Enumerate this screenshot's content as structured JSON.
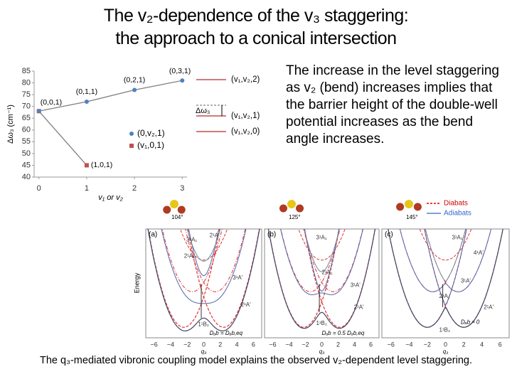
{
  "title": {
    "line1": "The v₂-dependence of the v₃ staggering:",
    "line2": "the approach to a conical intersection"
  },
  "body_text": "The increase in the level staggering as v₂ (bend) increases implies that the barrier height of the double-well potential increases as the bend angle increases.",
  "caption": "The q₃-mediated vibronic coupling model explains the observed v₂-dependent level staggering.",
  "chart_data": {
    "type": "line",
    "ylabel": "Δω₃ (cm⁻¹)",
    "xlabel": "v₁ or v₂",
    "x": [
      0,
      1,
      2,
      3
    ],
    "xlim": [
      -0.1,
      3.1
    ],
    "xticks": [
      0,
      1,
      2,
      3
    ],
    "ylim": [
      40,
      85
    ],
    "yticks": [
      40,
      45,
      50,
      55,
      60,
      65,
      70,
      75,
      80,
      85
    ],
    "line_color": "#7f7f7f",
    "legend": "center-right",
    "series": [
      {
        "name": "(v₁,0,1)",
        "color": "#c0504d",
        "marker": "square",
        "values": [
          68,
          45,
          null,
          null
        ],
        "point_labels": [
          null,
          "(1,0,1)",
          null,
          null
        ]
      },
      {
        "name": "(0,v₂,1)",
        "color": "#4f81bd",
        "marker": "circle",
        "values": [
          68,
          72,
          77,
          81
        ],
        "point_labels": [
          "(0,0,1)",
          "(0,1,1)",
          "(0,2,1)",
          "(0,3,1)"
        ]
      }
    ]
  },
  "level_diagram": {
    "levels": [
      "(v₁,v₂,2)",
      "(v₁,v₂,1)",
      "(v₁,v₂,0)"
    ],
    "delta_label": "Δω₃"
  },
  "figure": {
    "legend": [
      "Diabats",
      "Adiabats"
    ],
    "angles": [
      "104°",
      "125°",
      "145°"
    ],
    "y_label": "Energy",
    "x_label": "q₃",
    "x_ticks": [
      "−6",
      "−4",
      "−2",
      "0",
      "2",
      "4",
      "6"
    ],
    "panels": [
      {
        "label": "(a)",
        "states": [
          "2¹A'",
          "3¹A₁",
          "2¹A₁",
          "3¹A'",
          "2¹A'",
          "1¹B₂"
        ],
        "note": "Dₐb = Dₐb,eq"
      },
      {
        "label": "(b)",
        "states": [
          "3¹A₁",
          "2¹A₁",
          "3¹A'",
          "2¹A'",
          "1¹B₂"
        ],
        "note": "Dₐb = 0.5 Dₐb,eq"
      },
      {
        "label": "(c)",
        "states": [
          "3¹A₁",
          "4¹A'",
          "3¹A'",
          "2¹A₁",
          "2¹A'",
          "1¹B₂"
        ],
        "note": "Dₐb ≈ 0"
      }
    ]
  }
}
